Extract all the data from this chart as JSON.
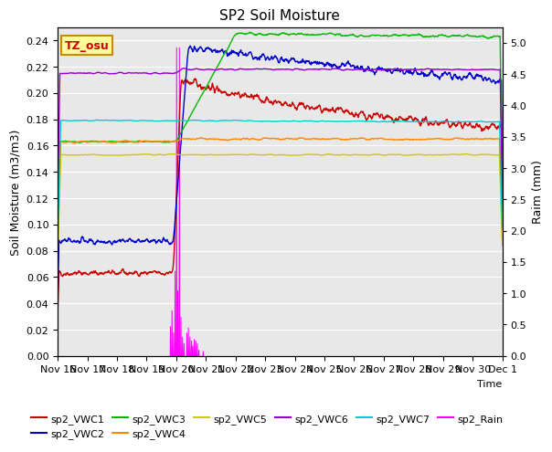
{
  "title": "SP2 Soil Moisture",
  "xlabel": "Time",
  "ylabel_left": "Soil Moisture (m3/m3)",
  "ylabel_right": "Raim (mm)",
  "ylim_left": [
    0.0,
    0.25
  ],
  "ylim_right": [
    0.0,
    5.25
  ],
  "yticks_left": [
    0.0,
    0.02,
    0.04,
    0.06,
    0.08,
    0.1,
    0.12,
    0.14,
    0.16,
    0.18,
    0.2,
    0.22,
    0.24
  ],
  "yticks_right": [
    0.0,
    0.5,
    1.0,
    1.5,
    2.0,
    2.5,
    3.0,
    3.5,
    4.0,
    4.5,
    5.0
  ],
  "xtick_labels": [
    "Nov 16",
    "Nov 17",
    "Nov 18",
    "Nov 19",
    "Nov 20",
    "Nov 21",
    "Nov 22",
    "Nov 23",
    "Nov 24",
    "Nov 25",
    "Nov 26",
    "Nov 27",
    "Nov 28",
    "Nov 29",
    "Nov 30",
    "Dec 1"
  ],
  "bg_color": "#e8e8e8",
  "label_box_color": "#ffff99",
  "label_box_text": "TZ_osu",
  "label_box_text_color": "#cc0000",
  "vwc1_color": "#cc0000",
  "vwc2_color": "#0000cc",
  "vwc3_color": "#00bb00",
  "vwc4_color": "#ff8800",
  "vwc5_color": "#cccc00",
  "vwc6_color": "#9900cc",
  "vwc7_color": "#00cccc",
  "rain_color": "#ff00ff",
  "legend_row1": [
    "sp2_VWC1",
    "sp2_VWC2",
    "sp2_VWC3",
    "sp2_VWC4",
    "sp2_VWC5",
    "sp2_VWC6"
  ],
  "legend_row2": [
    "sp2_VWC7",
    "sp2_Rain"
  ]
}
